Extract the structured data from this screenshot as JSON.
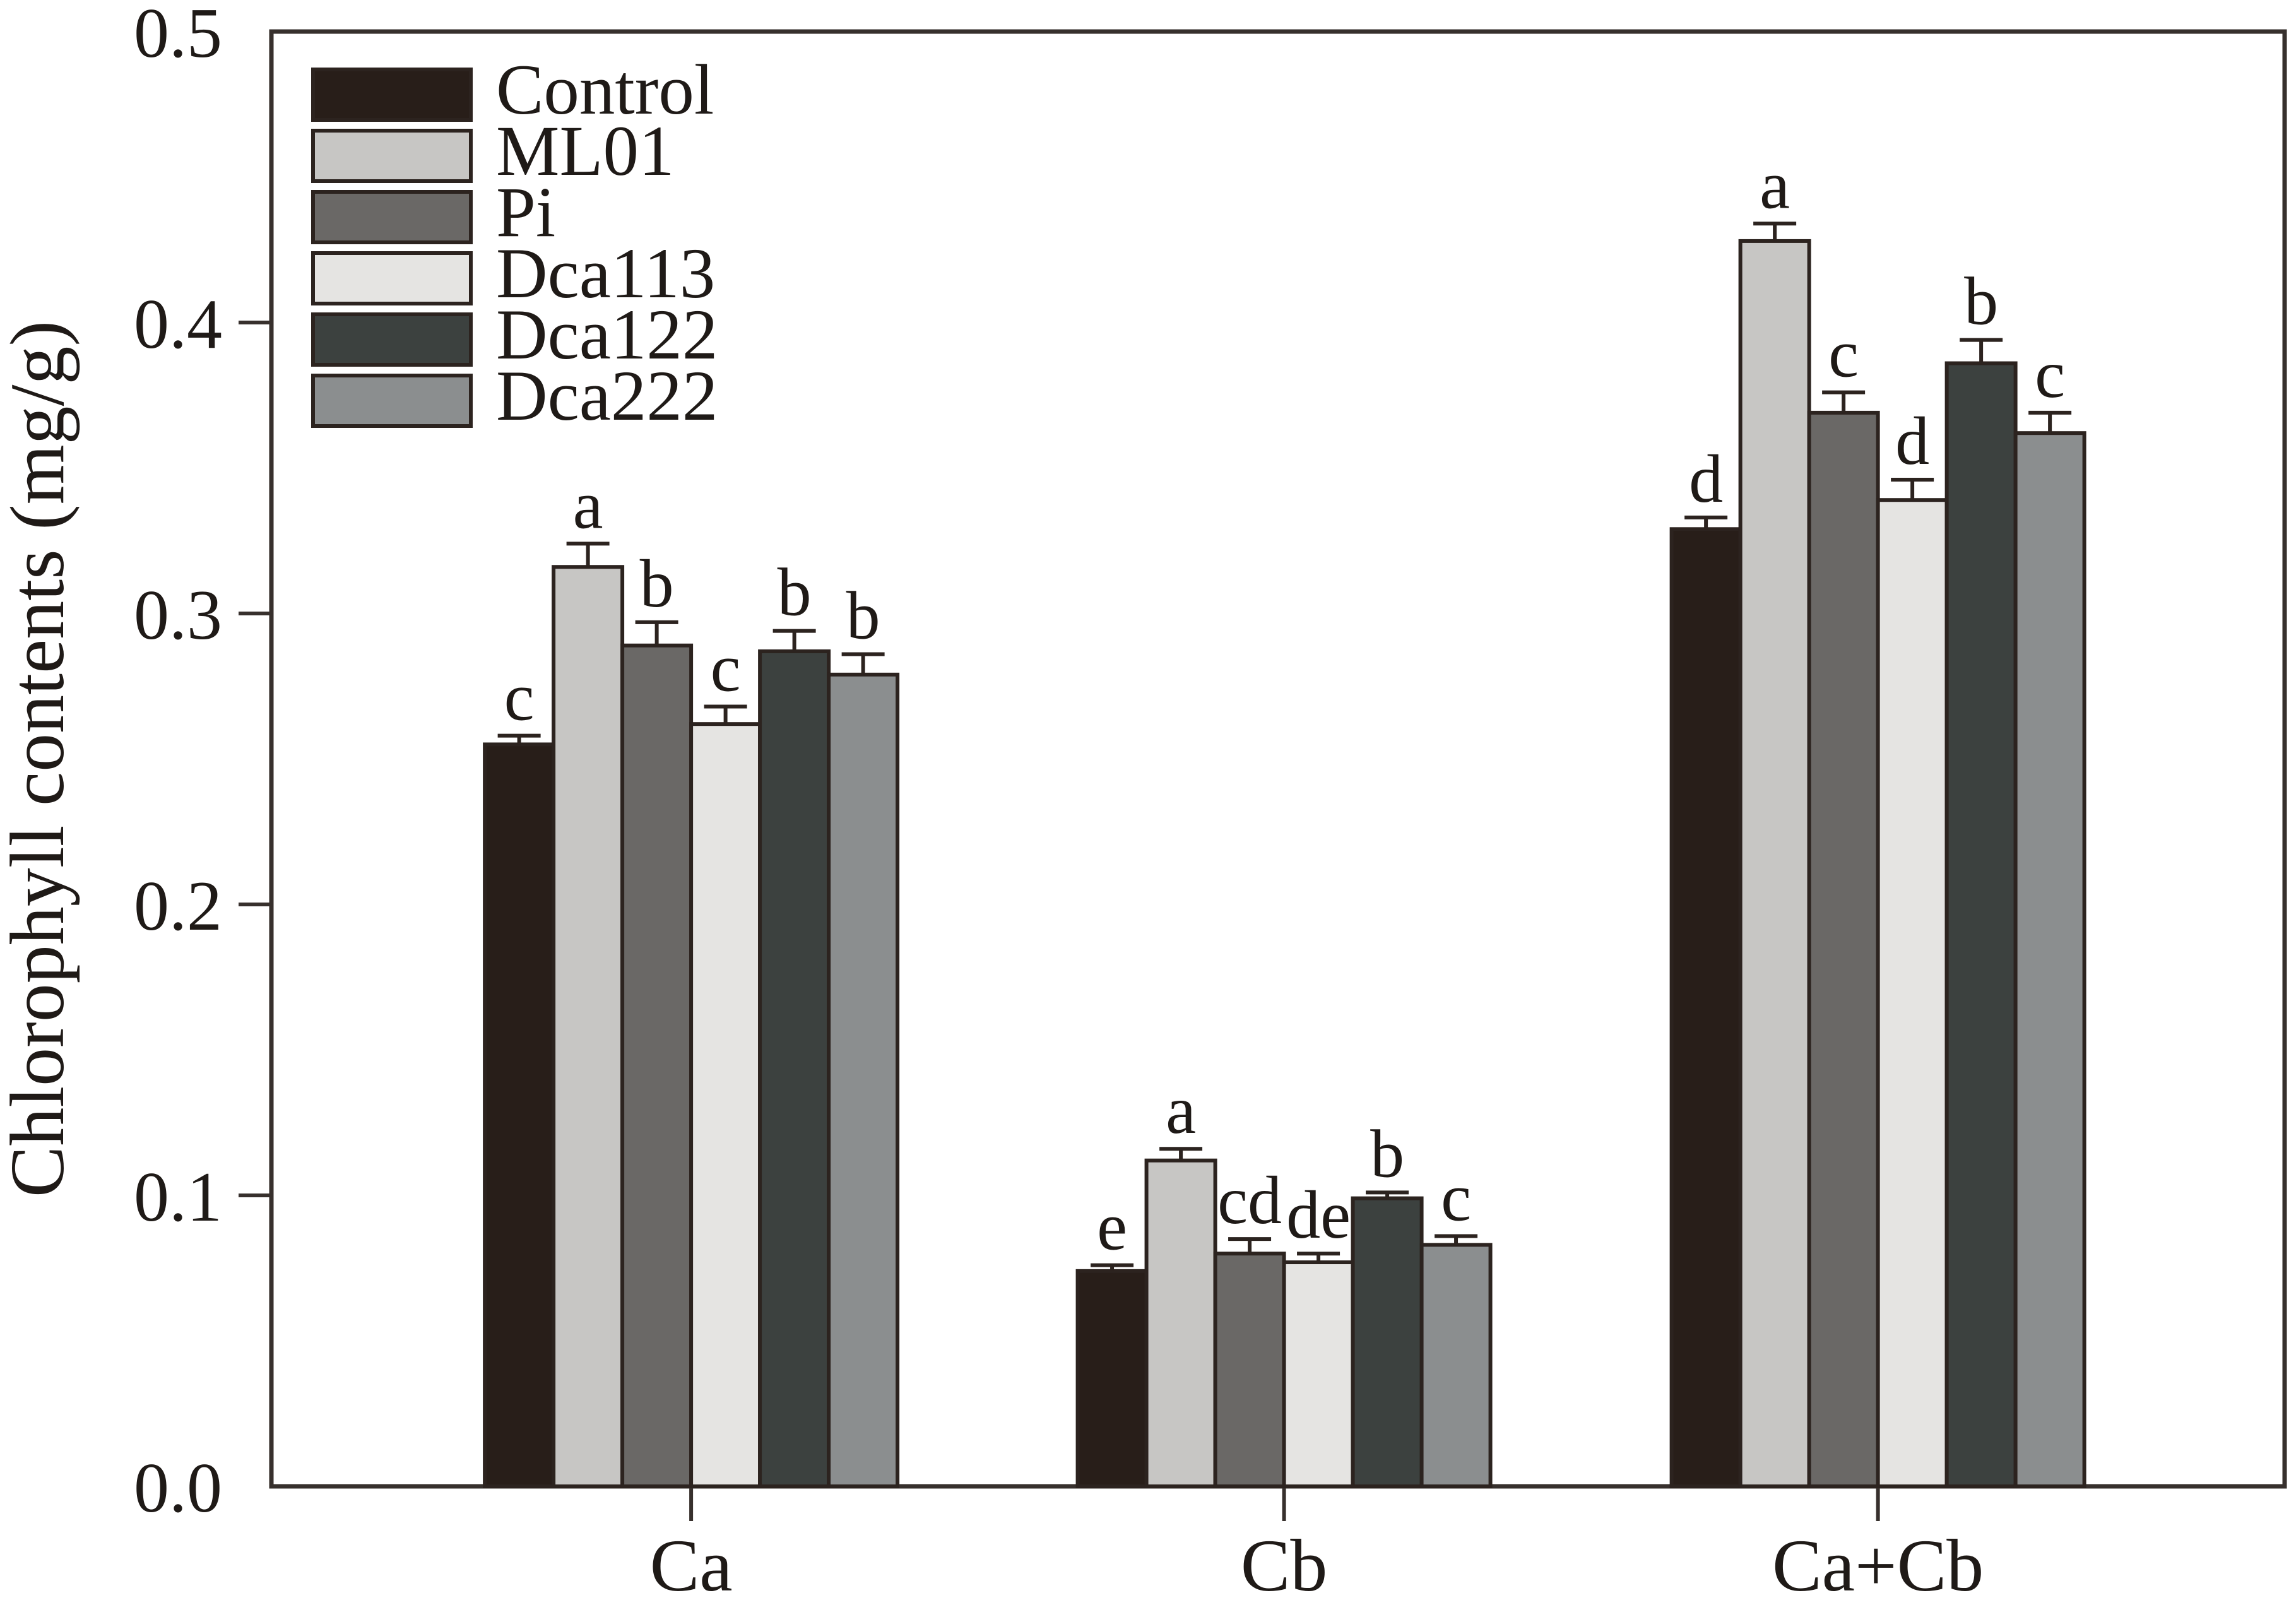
{
  "figure": {
    "background": "#ffffff",
    "axis_color": "#37302d",
    "text_color": "#1f1a17",
    "bar_outline_color": "#2c231f"
  },
  "chart_data": {
    "type": "bar",
    "title": "",
    "xlabel": "",
    "ylabel": "Chlorophyll contents (mg/g)",
    "ylim": [
      0.0,
      0.5
    ],
    "ytick_labels": [
      "0.0",
      "0.1",
      "0.2",
      "0.3",
      "0.4",
      "0.5"
    ],
    "categories": [
      "Ca",
      "Cb",
      "Ca+Cb"
    ],
    "grid": false,
    "legend_position": "top-left",
    "legend_labels": [
      "Control",
      "ML01",
      "Pi",
      "Dca113",
      "Dca122",
      "Dca222"
    ],
    "series": [
      {
        "name": "Control",
        "color": "#281e19",
        "values": [
          0.255,
          0.074,
          0.329
        ],
        "errors": [
          0.003,
          0.002,
          0.004
        ],
        "sig_letters": [
          "c",
          "e",
          "d"
        ]
      },
      {
        "name": "ML01",
        "color": "#c7c6c4",
        "values": [
          0.316,
          0.112,
          0.428
        ],
        "errors": [
          0.008,
          0.004,
          0.006
        ],
        "sig_letters": [
          "a",
          "a",
          "a"
        ]
      },
      {
        "name": "Pi",
        "color": "#6a6866",
        "values": [
          0.289,
          0.08,
          0.369
        ],
        "errors": [
          0.008,
          0.005,
          0.007
        ],
        "sig_letters": [
          "b",
          "cd",
          "c"
        ]
      },
      {
        "name": "Dca113",
        "color": "#e5e4e2",
        "values": [
          0.262,
          0.077,
          0.339
        ],
        "errors": [
          0.006,
          0.003,
          0.007
        ],
        "sig_letters": [
          "c",
          "de",
          "d"
        ]
      },
      {
        "name": "Dca122",
        "color": "#3c413f",
        "values": [
          0.287,
          0.099,
          0.386
        ],
        "errors": [
          0.007,
          0.002,
          0.008
        ],
        "sig_letters": [
          "b",
          "b",
          "b"
        ]
      },
      {
        "name": "Dca222",
        "color": "#8b8e8f",
        "values": [
          0.279,
          0.083,
          0.362
        ],
        "errors": [
          0.007,
          0.003,
          0.007
        ],
        "sig_letters": [
          "b",
          "c",
          "c"
        ]
      }
    ]
  }
}
